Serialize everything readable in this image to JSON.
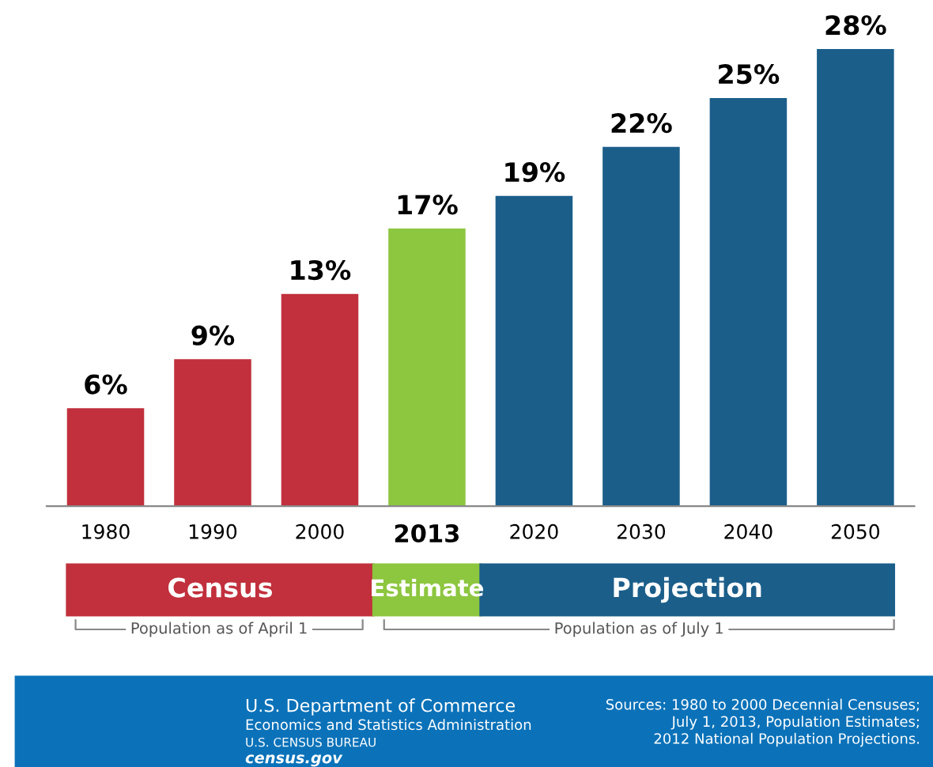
{
  "chart_data": {
    "type": "bar",
    "categories": [
      "1980",
      "1990",
      "2000",
      "2013",
      "2020",
      "2030",
      "2040",
      "2050"
    ],
    "values": [
      6,
      9,
      13,
      17,
      19,
      22,
      25,
      28
    ],
    "value_labels": [
      "6%",
      "9%",
      "13%",
      "17%",
      "19%",
      "22%",
      "25%",
      "28%"
    ],
    "colors": [
      "#c1303c",
      "#c1303c",
      "#c1303c",
      "#8dc63f",
      "#1b5e8a",
      "#1b5e8a",
      "#1b5e8a",
      "#1b5e8a"
    ],
    "annotations": [
      "Census",
      "Estimate",
      "Projection",
      "Population as of April 1",
      "Population as of July 1",
      "U.S. Department of Commerce",
      "Economics and Statistics Administration",
      "U.S. CENSUS BUREAU",
      "census.gov",
      "Sources: 1980 to 2000 Decennial Censuses;\nJuly 1, 2013, Population Estimates;\n2012 National Population Projections."
    ],
    "grid": false,
    "legend": false
  }
}
